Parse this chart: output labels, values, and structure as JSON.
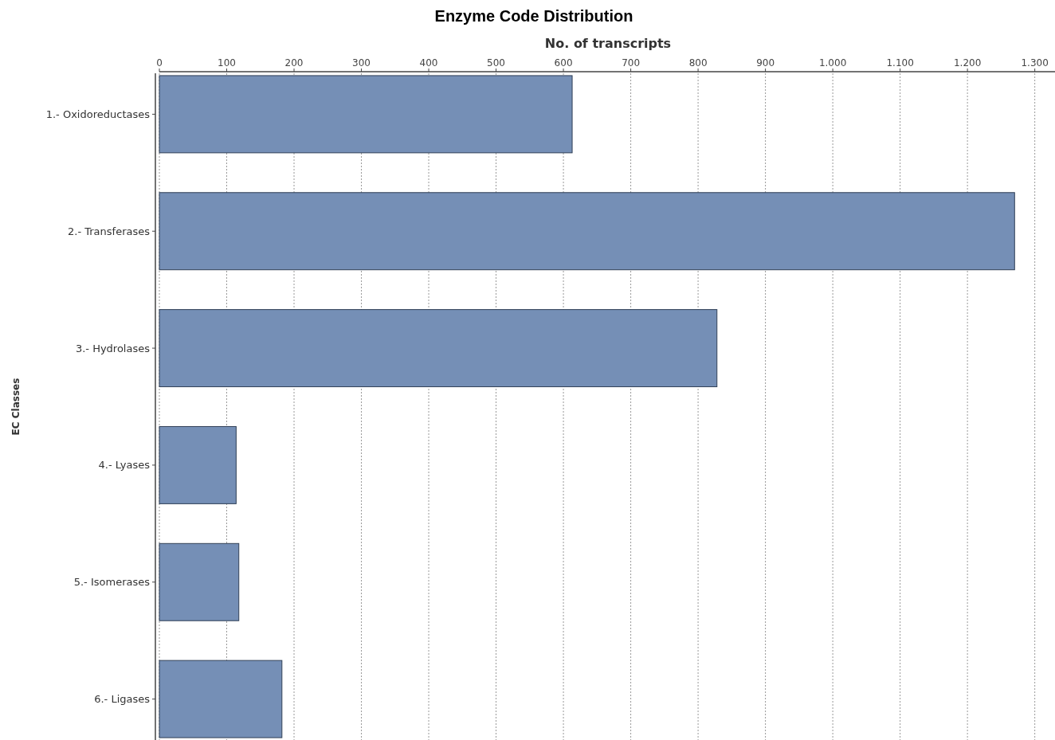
{
  "chart_data": {
    "type": "bar",
    "orientation": "horizontal",
    "title": "Enzyme Code Distribution",
    "xlabel": "No. of transcripts",
    "ylabel": "EC Classes",
    "categories": [
      "1.- Oxidoreductases",
      "2.- Transferases",
      "3.- Hydrolases",
      "4.- Lyases",
      "5.- Isomerases",
      "6.- Ligases"
    ],
    "values": [
      613,
      1270,
      828,
      114,
      118,
      182
    ],
    "color": "#758fb6",
    "xlim": [
      0,
      1330
    ],
    "xticks": [
      0,
      100,
      200,
      300,
      400,
      500,
      600,
      700,
      800,
      900,
      {
        "value": 1000,
        "label": "1.000"
      },
      {
        "value": 1100,
        "label": "1.100"
      },
      {
        "value": 1200,
        "label": "1.200"
      },
      {
        "value": 1300,
        "label": "1.300"
      }
    ],
    "grid": "x"
  }
}
